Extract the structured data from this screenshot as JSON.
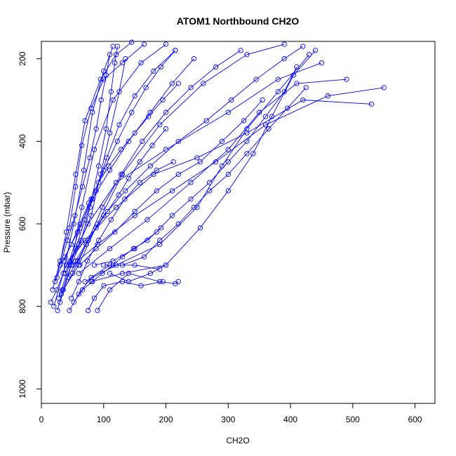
{
  "chart_data": {
    "type": "line",
    "title": "ATOM1 Northbound CH2O",
    "xlabel": "CH2O",
    "ylabel": "Pressure (mbar)",
    "xlim": [
      0,
      632
    ],
    "ylim": [
      1035,
      158
    ],
    "y_reversed": true,
    "x_ticks": [
      0,
      100,
      200,
      300,
      400,
      500,
      600
    ],
    "y_ticks": [
      200,
      400,
      600,
      800,
      1000
    ],
    "grid": false,
    "legend": "none",
    "colors": {
      "series": "#0000ff",
      "axis": "#000000"
    },
    "markers": "open-circle",
    "series": [
      {
        "points": [
          [
            25,
            730
          ],
          [
            40,
            620
          ],
          [
            55,
            480
          ],
          [
            70,
            350
          ],
          [
            95,
            250
          ],
          [
            120,
            190
          ],
          [
            145,
            160
          ]
        ]
      },
      {
        "points": [
          [
            30,
            790
          ],
          [
            48,
            700
          ],
          [
            65,
            560
          ],
          [
            85,
            420
          ],
          [
            115,
            300
          ],
          [
            160,
            210
          ],
          [
            200,
            165
          ]
        ]
      },
      {
        "points": [
          [
            20,
            800
          ],
          [
            35,
            720
          ],
          [
            52,
            600
          ],
          [
            68,
            470
          ],
          [
            82,
            330
          ],
          [
            100,
            230
          ],
          [
            115,
            170
          ]
        ]
      },
      {
        "points": [
          [
            35,
            760
          ],
          [
            60,
            700
          ],
          [
            90,
            600
          ],
          [
            130,
            480
          ],
          [
            190,
            360
          ],
          [
            260,
            260
          ],
          [
            330,
            190
          ],
          [
            390,
            165
          ]
        ]
      },
      {
        "points": [
          [
            28,
            780
          ],
          [
            45,
            700
          ],
          [
            75,
            600
          ],
          [
            120,
            500
          ],
          [
            200,
            420
          ],
          [
            300,
            330
          ],
          [
            380,
            250
          ],
          [
            450,
            210
          ]
        ]
      },
      {
        "points": [
          [
            40,
            700
          ],
          [
            70,
            640
          ],
          [
            120,
            560
          ],
          [
            180,
            480
          ],
          [
            250,
            440
          ],
          [
            330,
            380
          ],
          [
            420,
            300
          ],
          [
            530,
            310
          ]
        ]
      },
      {
        "points": [
          [
            50,
            700
          ],
          [
            90,
            650
          ],
          [
            150,
            580
          ],
          [
            210,
            520
          ],
          [
            280,
            450
          ],
          [
            360,
            360
          ],
          [
            460,
            290
          ],
          [
            550,
            270
          ]
        ]
      },
      {
        "points": [
          [
            60,
            720
          ],
          [
            110,
            660
          ],
          [
            170,
            590
          ],
          [
            240,
            500
          ],
          [
            300,
            420
          ],
          [
            350,
            330
          ],
          [
            410,
            260
          ],
          [
            490,
            250
          ]
        ]
      },
      {
        "points": [
          [
            70,
            740
          ],
          [
            120,
            700
          ],
          [
            190,
            650
          ],
          [
            250,
            560
          ],
          [
            290,
            460
          ],
          [
            330,
            370
          ],
          [
            380,
            280
          ],
          [
            430,
            190
          ]
        ]
      },
      {
        "points": [
          [
            80,
            740
          ],
          [
            130,
            720
          ],
          [
            200,
            700
          ],
          [
            255,
            610
          ],
          [
            300,
            520
          ],
          [
            340,
            430
          ],
          [
            370,
            340
          ],
          [
            405,
            240
          ],
          [
            440,
            180
          ]
        ]
      },
      {
        "points": [
          [
            90,
            810
          ],
          [
            110,
            760
          ],
          [
            140,
            720
          ],
          [
            190,
            740
          ],
          [
            215,
            745
          ],
          [
            220,
            740
          ]
        ]
      },
      {
        "points": [
          [
            75,
            810
          ],
          [
            85,
            780
          ],
          [
            100,
            750
          ],
          [
            130,
            740
          ],
          [
            160,
            750
          ],
          [
            195,
            740
          ]
        ]
      },
      {
        "points": [
          [
            45,
            810
          ],
          [
            60,
            770
          ],
          [
            80,
            730
          ],
          [
            110,
            700
          ],
          [
            150,
            700
          ],
          [
            190,
            710
          ]
        ]
      },
      {
        "points": [
          [
            15,
            790
          ],
          [
            25,
            760
          ],
          [
            40,
            700
          ],
          [
            60,
            650
          ],
          [
            80,
            580
          ],
          [
            95,
            480
          ],
          [
            110,
            380
          ],
          [
            125,
            280
          ],
          [
            135,
            200
          ]
        ]
      },
      {
        "points": [
          [
            18,
            760
          ],
          [
            30,
            690
          ],
          [
            45,
            610
          ],
          [
            55,
            510
          ],
          [
            65,
            410
          ],
          [
            80,
            320
          ],
          [
            100,
            250
          ],
          [
            130,
            210
          ],
          [
            165,
            165
          ]
        ]
      },
      {
        "points": [
          [
            22,
            740
          ],
          [
            38,
            680
          ],
          [
            58,
            620
          ],
          [
            82,
            540
          ],
          [
            110,
            470
          ],
          [
            140,
            400
          ],
          [
            175,
            330
          ],
          [
            210,
            260
          ],
          [
            245,
            200
          ]
        ]
      },
      {
        "points": [
          [
            32,
            770
          ],
          [
            50,
            720
          ],
          [
            72,
            650
          ],
          [
            98,
            560
          ],
          [
            128,
            480
          ],
          [
            162,
            400
          ],
          [
            200,
            330
          ],
          [
            240,
            270
          ],
          [
            280,
            220
          ],
          [
            320,
            180
          ]
        ]
      },
      {
        "points": [
          [
            26,
            810
          ],
          [
            34,
            760
          ],
          [
            48,
            700
          ],
          [
            64,
            640
          ],
          [
            78,
            560
          ],
          [
            92,
            460
          ],
          [
            104,
            370
          ],
          [
            112,
            280
          ],
          [
            118,
            210
          ],
          [
            122,
            170
          ]
        ]
      },
      {
        "points": [
          [
            38,
            720
          ],
          [
            55,
            660
          ],
          [
            70,
            590
          ],
          [
            88,
            520
          ],
          [
            105,
            440
          ],
          [
            125,
            360
          ],
          [
            150,
            290
          ],
          [
            180,
            230
          ],
          [
            215,
            180
          ]
        ]
      },
      {
        "points": [
          [
            55,
            690
          ],
          [
            75,
            640
          ],
          [
            100,
            580
          ],
          [
            135,
            520
          ],
          [
            175,
            460
          ],
          [
            220,
            400
          ],
          [
            265,
            350
          ],
          [
            305,
            300
          ],
          [
            345,
            250
          ],
          [
            390,
            200
          ],
          [
            420,
            170
          ]
        ]
      },
      {
        "points": [
          [
            45,
            690
          ],
          [
            62,
            610
          ],
          [
            80,
            540
          ],
          [
            100,
            470
          ],
          [
            122,
            400
          ],
          [
            145,
            330
          ],
          [
            168,
            270
          ],
          [
            192,
            220
          ],
          [
            215,
            180
          ]
        ]
      },
      {
        "points": [
          [
            30,
            700
          ],
          [
            42,
            640
          ],
          [
            54,
            580
          ],
          [
            66,
            510
          ],
          [
            78,
            440
          ],
          [
            88,
            370
          ],
          [
            96,
            300
          ],
          [
            104,
            240
          ],
          [
            110,
            190
          ]
        ]
      },
      {
        "points": [
          [
            62,
            700
          ],
          [
            88,
            660
          ],
          [
            118,
            620
          ],
          [
            150,
            570
          ],
          [
            185,
            520
          ],
          [
            220,
            480
          ],
          [
            255,
            450
          ],
          [
            290,
            400
          ],
          [
            325,
            350
          ],
          [
            355,
            300
          ]
        ]
      },
      {
        "points": [
          [
            85,
            700
          ],
          [
            115,
            690
          ],
          [
            150,
            660
          ],
          [
            185,
            620
          ],
          [
            210,
            580
          ],
          [
            240,
            540
          ],
          [
            270,
            500
          ],
          [
            300,
            450
          ],
          [
            330,
            400
          ],
          [
            360,
            340
          ],
          [
            390,
            280
          ],
          [
            410,
            220
          ]
        ]
      },
      {
        "points": [
          [
            100,
            700
          ],
          [
            130,
            700
          ],
          [
            165,
            680
          ],
          [
            190,
            640
          ],
          [
            220,
            600
          ],
          [
            245,
            560
          ],
          [
            270,
            520
          ],
          [
            300,
            480
          ],
          [
            330,
            430
          ],
          [
            365,
            370
          ],
          [
            395,
            320
          ],
          [
            425,
            270
          ]
        ]
      },
      {
        "points": [
          [
            110,
            720
          ],
          [
            140,
            740
          ],
          [
            175,
            720
          ],
          [
            200,
            700
          ]
        ]
      },
      {
        "points": [
          [
            52,
            790
          ],
          [
            66,
            760
          ],
          [
            82,
            740
          ],
          [
            98,
            720
          ],
          [
            115,
            700
          ],
          [
            130,
            680
          ],
          [
            148,
            660
          ],
          [
            170,
            640
          ],
          [
            192,
            610
          ]
        ]
      },
      {
        "points": [
          [
            42,
            730
          ],
          [
            58,
            690
          ],
          [
            72,
            650
          ],
          [
            88,
            610
          ],
          [
            106,
            570
          ],
          [
            124,
            530
          ],
          [
            140,
            490
          ],
          [
            158,
            450
          ],
          [
            178,
            410
          ],
          [
            200,
            370
          ]
        ]
      },
      {
        "points": [
          [
            48,
            780
          ],
          [
            60,
            740
          ],
          [
            74,
            690
          ],
          [
            92,
            640
          ],
          [
            112,
            590
          ],
          [
            134,
            540
          ],
          [
            158,
            500
          ],
          [
            185,
            470
          ],
          [
            212,
            450
          ]
        ]
      },
      {
        "points": [
          [
            36,
            690
          ],
          [
            48,
            650
          ],
          [
            62,
            600
          ],
          [
            76,
            550
          ],
          [
            92,
            500
          ],
          [
            108,
            460
          ],
          [
            128,
            420
          ],
          [
            150,
            380
          ],
          [
            172,
            340
          ],
          [
            195,
            300
          ],
          [
            220,
            260
          ]
        ]
      }
    ]
  }
}
